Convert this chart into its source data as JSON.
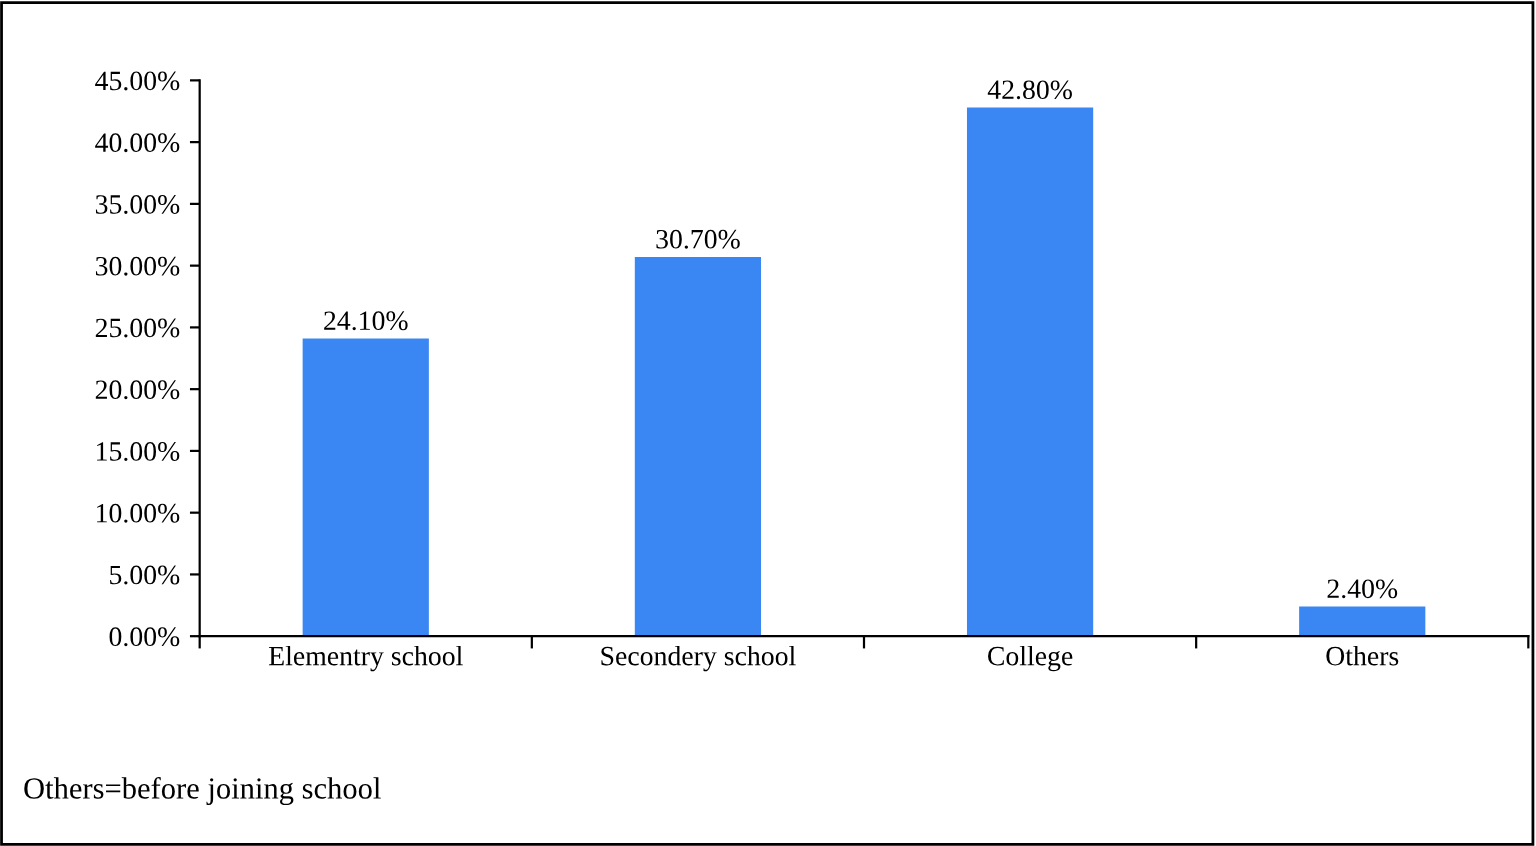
{
  "chart_data": {
    "type": "bar",
    "categories": [
      "Elementry school",
      "Secondery school",
      "College",
      "Others"
    ],
    "values": [
      24.1,
      30.7,
      42.8,
      2.4
    ],
    "value_labels": [
      "24.10%",
      "30.70%",
      "42.80%",
      "2.40%"
    ],
    "color": "#3a86f2",
    "ylim": [
      0,
      45
    ],
    "yticks": [
      {
        "value": 0,
        "label": "0.00%"
      },
      {
        "value": 5,
        "label": "5.00%"
      },
      {
        "value": 10,
        "label": "10.00%"
      },
      {
        "value": 15,
        "label": "15.00%"
      },
      {
        "value": 20,
        "label": "20.00%"
      },
      {
        "value": 25,
        "label": "25.00%"
      },
      {
        "value": 30,
        "label": "30.00%"
      },
      {
        "value": 35,
        "label": "35.00%"
      },
      {
        "value": 40,
        "label": "40.00%"
      },
      {
        "value": 45,
        "label": "45.00%"
      }
    ],
    "grid": false,
    "legend": false,
    "annotations": [
      "Others=before joining school"
    ]
  }
}
